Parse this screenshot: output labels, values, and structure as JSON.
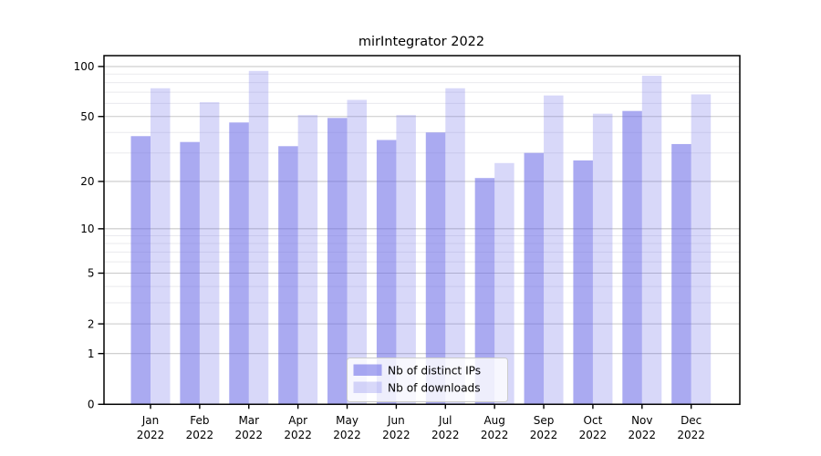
{
  "chart_data": {
    "type": "bar",
    "title": "mirIntegrator 2022",
    "categories": [
      "Jan",
      "Feb",
      "Mar",
      "Apr",
      "May",
      "Jun",
      "Jul",
      "Aug",
      "Sep",
      "Oct",
      "Nov",
      "Dec"
    ],
    "year_label": "2022",
    "series": [
      {
        "name": "Nb of distinct IPs",
        "color": "#6464e6",
        "alpha": 0.55,
        "values": [
          38,
          35,
          46,
          33,
          49,
          36,
          40,
          21,
          30,
          27,
          54,
          34
        ]
      },
      {
        "name": "Nb of downloads",
        "color": "#6464e6",
        "alpha": 0.25,
        "values": [
          74,
          61,
          94,
          51,
          63,
          51,
          74,
          26,
          67,
          52,
          88,
          68
        ]
      }
    ],
    "xlabel": "",
    "ylabel": "",
    "yscale": "log1p",
    "ylim": [
      0,
      116
    ],
    "yticks": [
      0,
      1,
      2,
      5,
      10,
      20,
      50,
      100
    ],
    "yticks_minor": [
      3,
      4,
      6,
      7,
      8,
      9,
      30,
      40,
      60,
      70,
      80,
      90
    ],
    "grid": true,
    "legend_position": "lower center",
    "colors": {
      "background": "#ffffff",
      "axis": "#000000",
      "grid_major": "#c9c9c9",
      "grid_minor": "#eaeaee",
      "legend_border": "#cccccc",
      "legend_background": "#ffffff"
    }
  }
}
